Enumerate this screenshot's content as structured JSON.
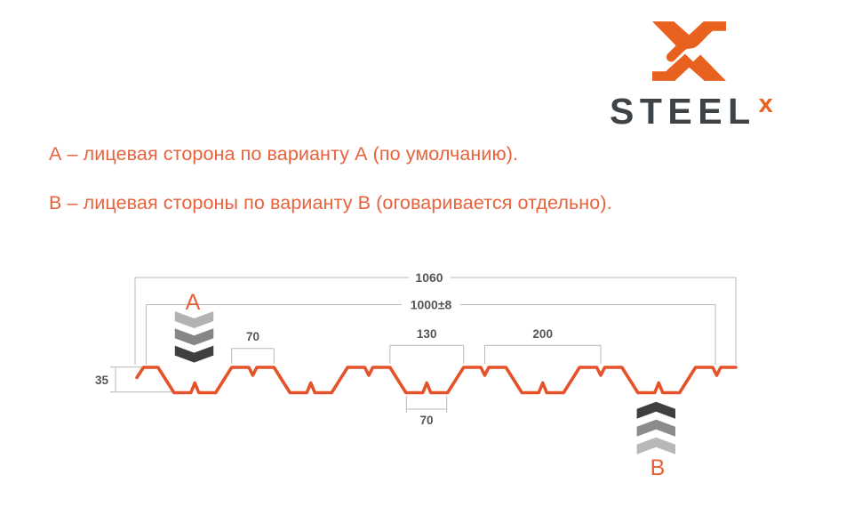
{
  "colors": {
    "logo_orange": "#e8611f",
    "brand_gray": "#3e4347",
    "note_orange": "#e8623c"
  },
  "logo": {
    "brand": "STEEL",
    "sup": "x"
  },
  "notes": {
    "line_a": "А – лицевая сторона по варианту А (по умолчанию).",
    "line_b": "В – лицевая стороны по варианту В (оговаривается отдельно)."
  },
  "drawing": {
    "dimensions": {
      "overall_width": "1060",
      "useful_width": "1000±8",
      "crest_top_width": "70",
      "valley_opening": "130",
      "pitch": "200",
      "valley_bottom_width": "70",
      "height": "35"
    },
    "markers": {
      "a": "А",
      "b": "В"
    },
    "profile_color": "#e5522a",
    "dim_line_color": "#b9b9b9",
    "dim_text_color": "#54565b",
    "marker_color": "#e8603a",
    "chevron_colors_a": [
      "#b2b2b2",
      "#868686",
      "#3f3f3f"
    ],
    "chevron_colors_b": [
      "#3f3f3f",
      "#8b8b8b",
      "#b8b8b8"
    ]
  }
}
